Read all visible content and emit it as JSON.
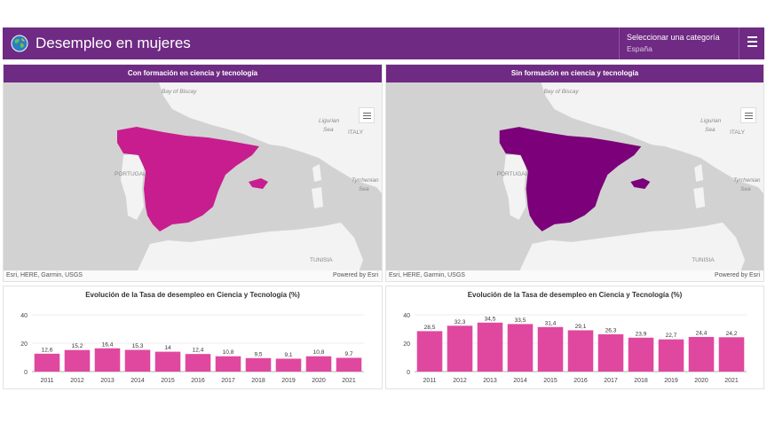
{
  "header": {
    "title": "Desempleo en mujeres",
    "category_label": "Seleccionar una categoría",
    "category_value": "España",
    "icons": [
      "globe-icon",
      "menu-icon"
    ]
  },
  "maps": [
    {
      "title": "Con formación en ciencia y tecnología",
      "fill_color": "#c71d8f",
      "attribution": "Esri, HERE, Garmin, USGS",
      "powered": "Powered by Esri",
      "labels": {
        "bay": "Bay of Biscay",
        "portugal": "PORTUGAL",
        "italy": "ITALY",
        "ligurian1": "Ligurian",
        "ligurian2": "Sea",
        "tyrr1": "Tyrrhenian",
        "tyrr2": "Sea",
        "tunisia": "TUNISIA"
      }
    },
    {
      "title": "Sin formación en ciencia y tecnología",
      "fill_color": "#7b0079",
      "attribution": "Esri, HERE, Garmin, USGS",
      "powered": "Powered by Esri",
      "labels": {
        "bay": "Bay of Biscay",
        "portugal": "PORTUGAL",
        "italy": "ITALY",
        "ligurian1": "Ligurian",
        "ligurian2": "Sea",
        "tyrr1": "Tyrrhenian",
        "tyrr2": "Sea",
        "tunisia": "TUNISIA"
      }
    }
  ],
  "chart_data": [
    {
      "type": "bar",
      "title": "Evolución de la Tasa de desempleo en Ciencia y Tecnología (%)",
      "categories": [
        "2011",
        "2012",
        "2013",
        "2014",
        "2015",
        "2016",
        "2017",
        "2018",
        "2019",
        "2020",
        "2021"
      ],
      "values": [
        12.6,
        15.2,
        16.4,
        15.3,
        14,
        12.4,
        10.8,
        9.5,
        9.1,
        10.8,
        9.7
      ],
      "value_labels": [
        "12,6",
        "15,2",
        "16,4",
        "15,3",
        "14",
        "12,4",
        "10,8",
        "9,5",
        "9,1",
        "10,8",
        "9,7"
      ],
      "ylim": [
        0,
        40
      ],
      "yticks": [
        0,
        20,
        40
      ],
      "color": "#e0489f",
      "grid": true
    },
    {
      "type": "bar",
      "title": "Evolución de la Tasa de desempleo en Ciencia y Tecnología (%)",
      "categories": [
        "2011",
        "2012",
        "2013",
        "2014",
        "2015",
        "2016",
        "2017",
        "2018",
        "2019",
        "2020",
        "2021"
      ],
      "values": [
        28.5,
        32.3,
        34.5,
        33.5,
        31.4,
        29.1,
        26.3,
        23.9,
        22.7,
        24.4,
        24.2
      ],
      "value_labels": [
        "28,5",
        "32,3",
        "34,5",
        "33,5",
        "31,4",
        "29,1",
        "26,3",
        "23,9",
        "22,7",
        "24,4",
        "24,2"
      ],
      "ylim": [
        0,
        40
      ],
      "yticks": [
        0,
        20,
        40
      ],
      "color": "#e0489f",
      "grid": true
    }
  ]
}
